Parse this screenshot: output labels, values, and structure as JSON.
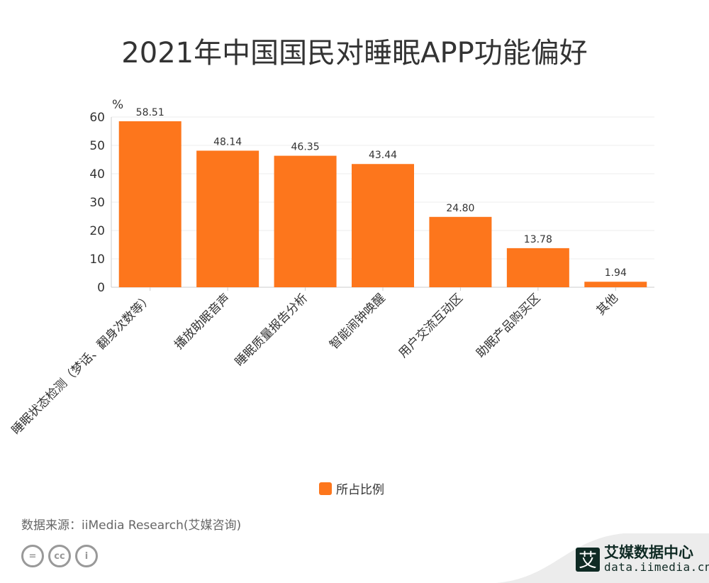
{
  "title": "2021年中国国民对睡眠APP功能偏好",
  "chart_data": {
    "type": "bar",
    "title": "2021年中国国民对睡眠APP功能偏好",
    "ylabel": "%",
    "ylim": [
      0,
      60
    ],
    "yticks": [
      0,
      10,
      20,
      30,
      40,
      50,
      60
    ],
    "grid": true,
    "legend_position": "bottom",
    "color": "#fd761c",
    "categories": [
      "睡眠状态检测（梦话、翻身次数等）",
      "播放助眠音声",
      "睡眠质量报告分析",
      "智能闹钟唤醒",
      "用户交流互动区",
      "助眠产品购买区",
      "其他"
    ],
    "series": [
      {
        "name": "所占比例",
        "values": [
          58.51,
          48.14,
          46.35,
          43.44,
          24.8,
          13.78,
          1.94
        ]
      }
    ]
  },
  "source": "数据来源：iiMedia Research(艾媒咨询)",
  "brand": {
    "name": "艾媒数据中心",
    "url": "data.iimedia.cn",
    "logo_char": "艾"
  },
  "cc_icons": [
    "equals-icon",
    "cc-icon",
    "person-icon"
  ]
}
